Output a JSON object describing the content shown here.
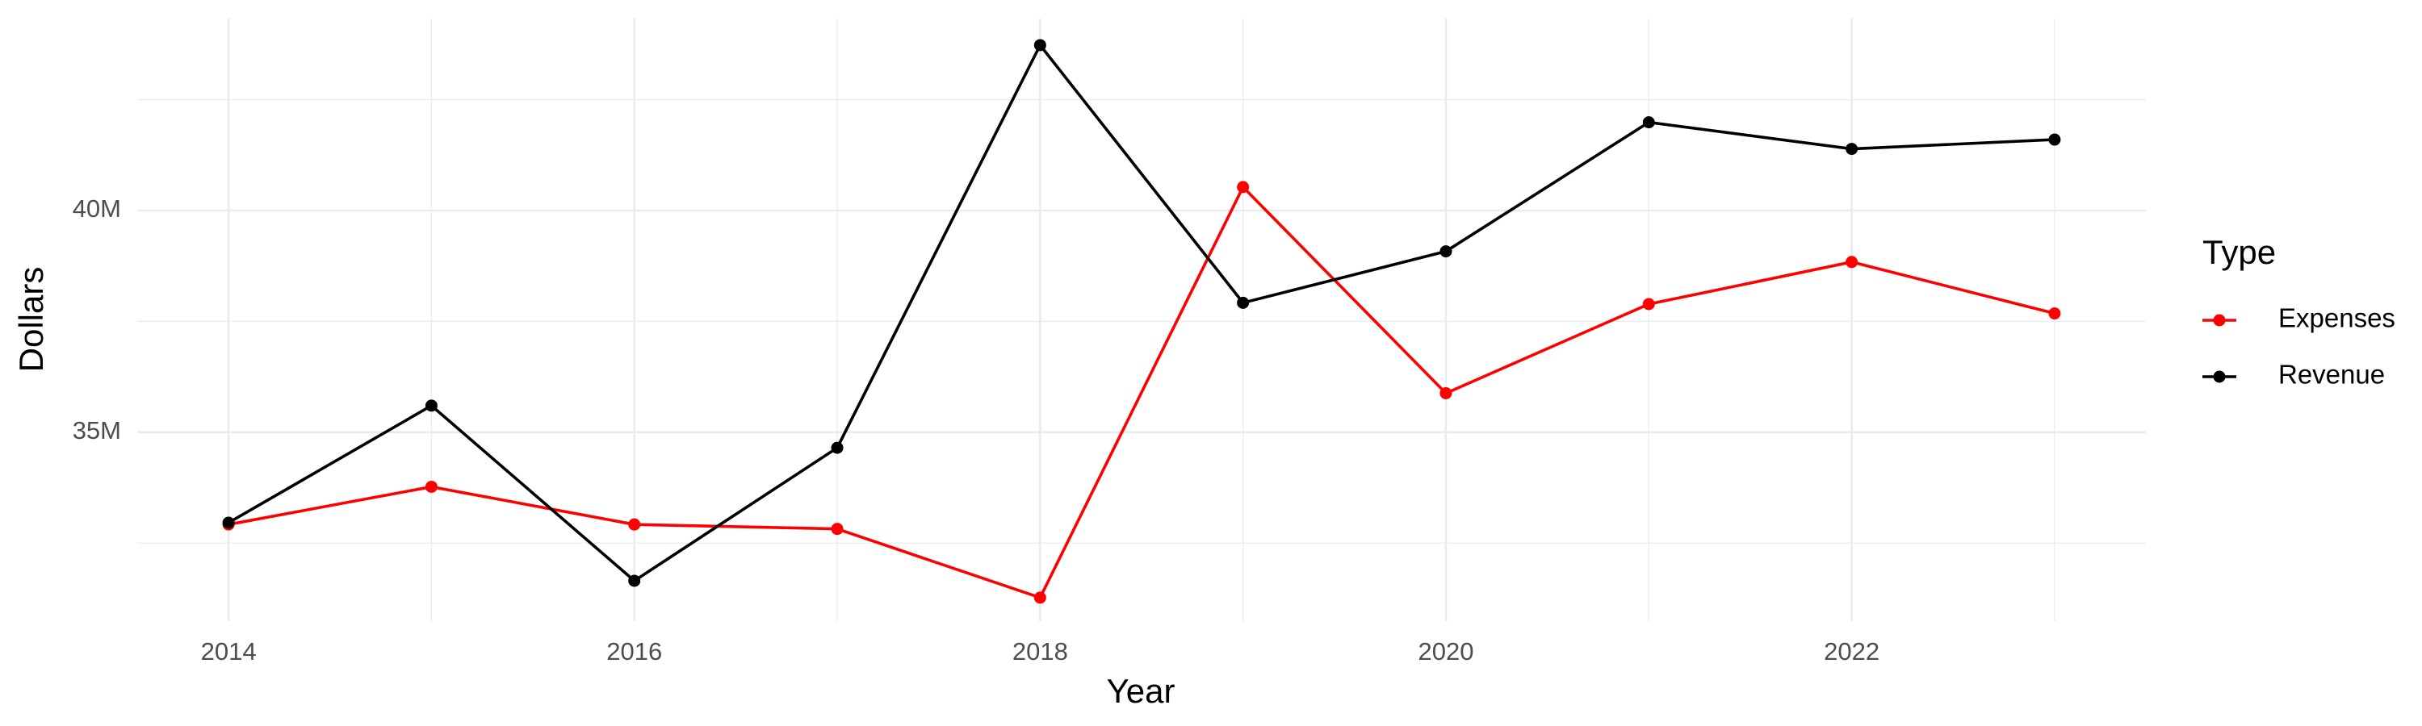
{
  "chart_data": {
    "type": "line",
    "x_label": "Year",
    "y_label": "Dollars",
    "x": [
      2014,
      2015,
      2016,
      2017,
      2018,
      2019,
      2020,
      2021,
      2022,
      2023
    ],
    "series": [
      {
        "name": "Expenses",
        "color": "#ff0000",
        "values": [
          32920000,
          33770000,
          32920000,
          32820000,
          31270000,
          40530000,
          35880000,
          37890000,
          38840000,
          37680000
        ]
      },
      {
        "name": "Revenue",
        "color": "#000000",
        "values": [
          32960000,
          35600000,
          31650000,
          34650000,
          43730000,
          37920000,
          39080000,
          41990000,
          41390000,
          41600000
        ]
      }
    ],
    "xlim": [
      2013.55,
      2023.45
    ],
    "ylim": [
      30740000,
      44330000
    ],
    "xticks": [
      2014,
      2016,
      2018,
      2020,
      2022
    ],
    "yticks": [
      {
        "value": 35000000,
        "label": "35M"
      },
      {
        "value": 40000000,
        "label": "40M"
      }
    ],
    "x_minor_grid": [
      2015,
      2017,
      2019,
      2021,
      2023
    ],
    "y_minor_grid": [
      32500000,
      37500000,
      42500000
    ],
    "grid": true,
    "legend_title": "Type",
    "legend_position": "right"
  }
}
